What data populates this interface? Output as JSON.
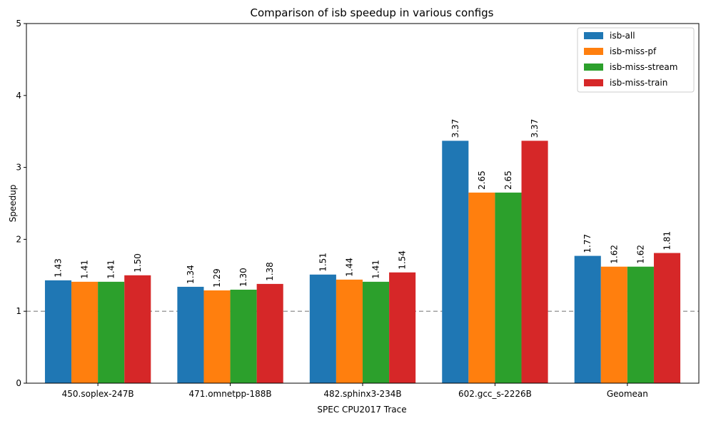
{
  "chart_data": {
    "type": "bar",
    "title": "Comparison of isb speedup in various configs",
    "xlabel": "SPEC CPU2017 Trace",
    "ylabel": "Speedup",
    "ylim": [
      0,
      5
    ],
    "yticks": [
      "0",
      "1",
      "2",
      "3",
      "4",
      "5"
    ],
    "categories": [
      "450.soplex-247B",
      "471.omnetpp-188B",
      "482.sphinx3-234B",
      "602.gcc_s-2226B",
      "Geomean"
    ],
    "series": [
      {
        "name": "isb-all",
        "color": "#1f77b4",
        "values": [
          1.43,
          1.34,
          1.51,
          3.37,
          1.77
        ],
        "labels": [
          "1.43",
          "1.34",
          "1.51",
          "3.37",
          "1.77"
        ]
      },
      {
        "name": "isb-miss-pf",
        "color": "#ff7f0e",
        "values": [
          1.41,
          1.29,
          1.44,
          2.65,
          1.62
        ],
        "labels": [
          "1.41",
          "1.29",
          "1.44",
          "2.65",
          "1.62"
        ]
      },
      {
        "name": "isb-miss-stream",
        "color": "#2ca02c",
        "values": [
          1.41,
          1.3,
          1.41,
          2.65,
          1.62
        ],
        "labels": [
          "1.41",
          "1.30",
          "1.41",
          "2.65",
          "1.62"
        ]
      },
      {
        "name": "isb-miss-train",
        "color": "#d62728",
        "values": [
          1.5,
          1.38,
          1.54,
          3.37,
          1.81
        ],
        "labels": [
          "1.50",
          "1.38",
          "1.54",
          "3.37",
          "1.81"
        ]
      }
    ],
    "reference_line": {
      "value": 1,
      "color": "#a0a0a0",
      "style": "dashed"
    },
    "legend_position": "top-right",
    "grid": false
  }
}
